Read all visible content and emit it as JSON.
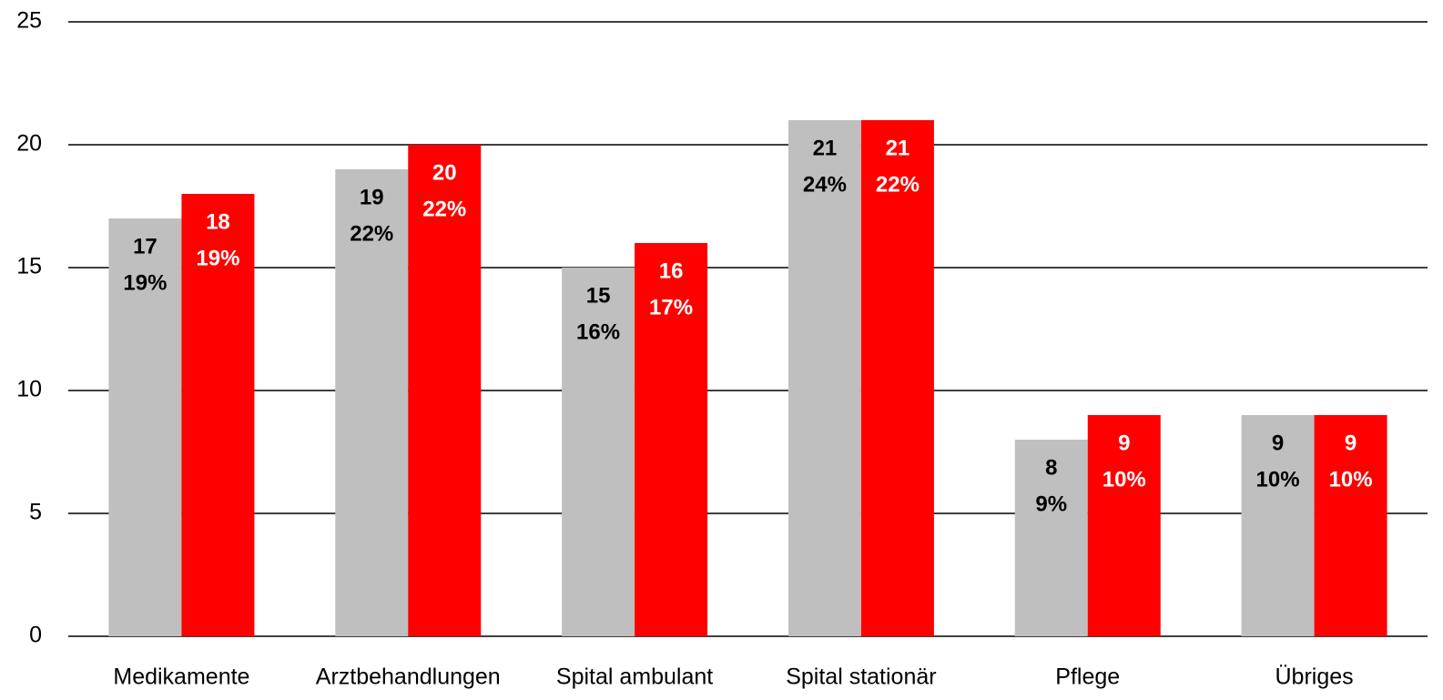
{
  "chart_data": {
    "type": "bar",
    "categories": [
      "Medikamente",
      "Arztbehandlungen",
      "Spital ambulant",
      "Spital stationär",
      "Pflege",
      "Übriges"
    ],
    "series": [
      {
        "color": "#bfbfbf",
        "label_color": "#000000",
        "values": [
          17,
          19,
          15,
          21,
          8,
          9
        ],
        "share_labels": [
          "19%",
          "22%",
          "16%",
          "24%",
          "9%",
          "10%"
        ]
      },
      {
        "color": "#ff0000",
        "label_color": "#ffffff",
        "values": [
          18,
          20,
          16,
          21,
          9,
          9
        ],
        "share_labels": [
          "19%",
          "22%",
          "17%",
          "22%",
          "10%",
          "10%"
        ]
      }
    ],
    "ylim": [
      0,
      25
    ],
    "yticks": [
      0,
      5,
      10,
      15,
      20,
      25
    ],
    "grid": true
  }
}
